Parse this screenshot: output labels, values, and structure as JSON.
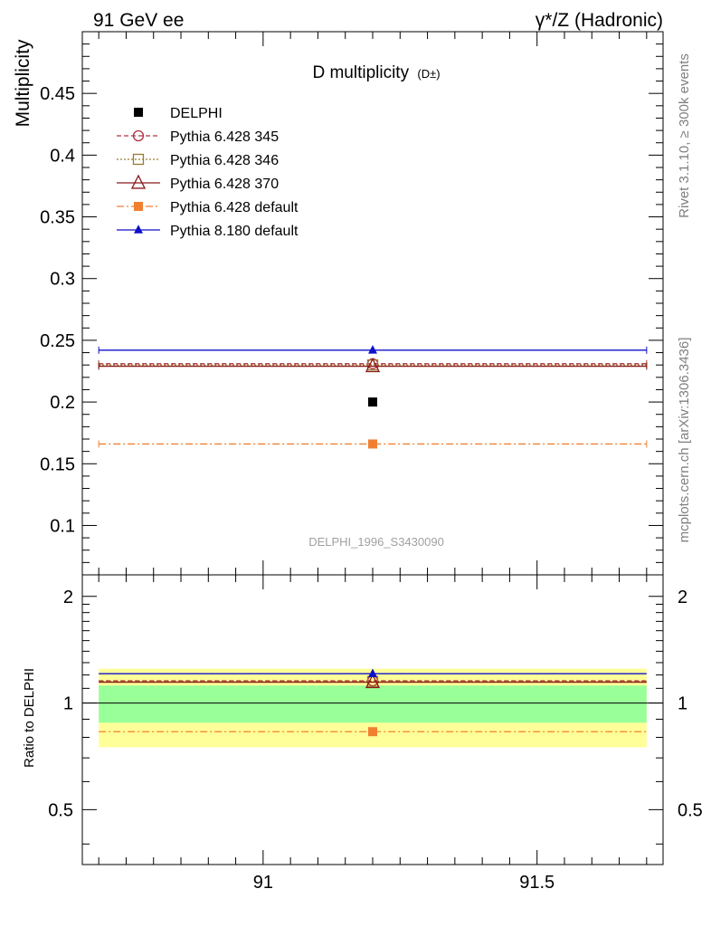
{
  "header": {
    "left": "91 GeV ee",
    "right": "γ*/Z (Hadronic)"
  },
  "side": {
    "rivet": "Rivet 3.1.10, ≥ 300k events",
    "mcplots": "mcplots.cern.ch [arXiv:1306.3436]"
  },
  "chart_data": {
    "type": "line",
    "title": "D multiplicity",
    "title_sub": "(D±)",
    "watermark": "DELPHI_1996_S3430090",
    "ylabel": "Multiplicity",
    "ratio_ylabel": "Ratio to DELPHI",
    "xlim": [
      90.67,
      91.73
    ],
    "ylim": [
      0.06,
      0.5
    ],
    "ratio_ylim": [
      0.35,
      2.3
    ],
    "x_ticks": [
      91,
      91.5
    ],
    "x_tick_labels": [
      "91",
      "91.5"
    ],
    "y_ticks": [
      0.1,
      0.15,
      0.2,
      0.25,
      0.3,
      0.35,
      0.4,
      0.45
    ],
    "y_tick_labels": [
      "0.1",
      "0.15",
      "0.2",
      "0.25",
      "0.3",
      "0.35",
      "0.4",
      "0.45"
    ],
    "ratio_y_ticks": [
      0.5,
      1,
      2
    ],
    "ratio_y_tick_labels": [
      "0.5",
      "1",
      "2"
    ],
    "x_point": 91.2,
    "bin_range": [
      90.7,
      91.7
    ],
    "reference": {
      "name": "DELPHI",
      "value": 0.2,
      "band_inner": [
        0.88,
        1.12
      ],
      "band_outer": [
        0.75,
        1.25
      ]
    },
    "series": [
      {
        "name": "DELPHI",
        "value": 0.2,
        "ratio": 1.0,
        "color": "#000000",
        "marker": "square"
      },
      {
        "name": "Pythia 6.428 345",
        "value": 0.231,
        "ratio": 1.155,
        "color": "#b03040",
        "marker": "circle-open",
        "dash": "5,3"
      },
      {
        "name": "Pythia 6.428 346",
        "value": 0.23,
        "ratio": 1.15,
        "color": "#9a7a30",
        "marker": "square-open",
        "dash": "2,2"
      },
      {
        "name": "Pythia 6.428 370",
        "value": 0.229,
        "ratio": 1.145,
        "color": "#8b1a1a",
        "marker": "triangle-open",
        "dash": ""
      },
      {
        "name": "Pythia 6.428 default",
        "value": 0.166,
        "ratio": 0.83,
        "color": "#f08030",
        "marker": "square",
        "dash": "8,3,2,3"
      },
      {
        "name": "Pythia 8.180 default",
        "value": 0.242,
        "ratio": 1.21,
        "color": "#1010cc",
        "marker": "triangle",
        "dash": ""
      }
    ],
    "colors": {
      "band_inner": "#99ff99",
      "band_outer": "#ffff99",
      "watermark": "#a0a0a0",
      "side_text": "#808080"
    }
  }
}
